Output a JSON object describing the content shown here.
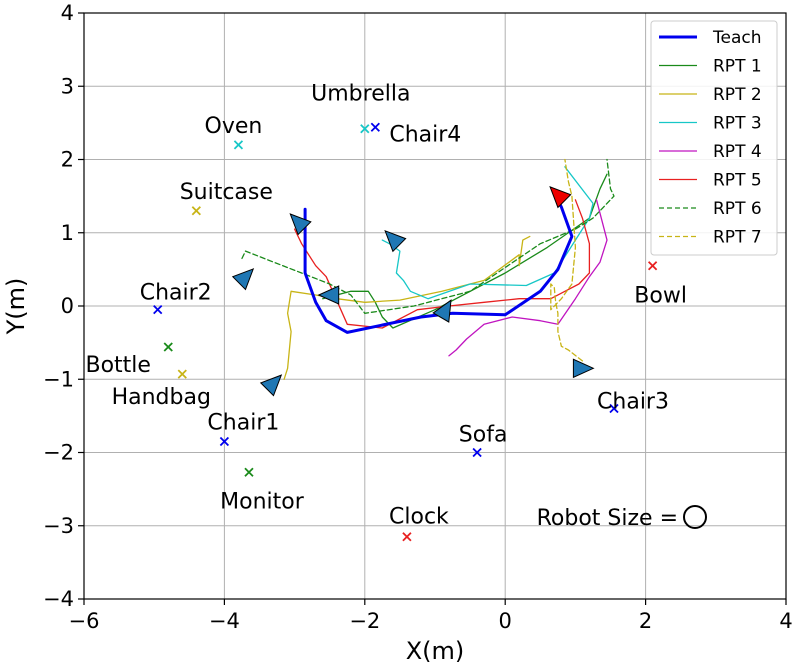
{
  "chart_data": {
    "type": "line",
    "title": "",
    "xlabel": "X(m)",
    "ylabel": "Y(m)",
    "xlim": [
      -6,
      4
    ],
    "ylim": [
      -4,
      4
    ],
    "xticks": [
      -6,
      -4,
      -2,
      0,
      2,
      4
    ],
    "yticks": [
      -4,
      -3,
      -2,
      -1,
      0,
      1,
      2,
      3,
      4
    ],
    "xtick_labels": [
      "−6",
      "−4",
      "−2",
      "0",
      "2",
      "4"
    ],
    "ytick_labels": [
      "−4",
      "−3",
      "−2",
      "−1",
      "0",
      "1",
      "2",
      "3",
      "4"
    ],
    "grid": true,
    "legend_position": "top-right",
    "series": [
      {
        "name": "Teach",
        "color": "#0000ee",
        "dash": "solid",
        "width": 3,
        "x": [
          -2.85,
          -2.85,
          -2.7,
          -2.55,
          -2.25,
          -1.8,
          -1.2,
          -0.75,
          0.0,
          0.5,
          0.75,
          0.95,
          0.8,
          0.7
        ],
        "y": [
          1.32,
          0.45,
          0.05,
          -0.2,
          -0.36,
          -0.27,
          -0.15,
          -0.1,
          -0.12,
          0.2,
          0.5,
          0.95,
          1.35,
          1.55
        ]
      },
      {
        "name": "RPT 1",
        "color": "#1a8a1a",
        "dash": "solid",
        "width": 1.3,
        "x": [
          -2.6,
          -2.2,
          -1.95,
          -1.85,
          -1.75,
          -1.6,
          -1.0,
          0.0,
          0.6,
          1.2,
          1.35,
          1.45
        ],
        "y": [
          0.1,
          0.2,
          0.2,
          0.05,
          -0.15,
          -0.3,
          -0.05,
          0.45,
          0.8,
          1.2,
          1.6,
          1.8
        ]
      },
      {
        "name": "RPT 2",
        "color": "#c8b416",
        "dash": "solid",
        "width": 1.3,
        "x": [
          -3.15,
          -3.1,
          -3.05,
          -3.1,
          -3.05,
          -2.7,
          -2.4,
          -2.0,
          -1.5,
          -0.9,
          -0.3,
          0.2,
          0.2,
          0.25,
          0.35
        ],
        "y": [
          -1.0,
          -0.85,
          -0.35,
          -0.1,
          0.2,
          0.15,
          0.1,
          0.05,
          0.08,
          0.2,
          0.35,
          0.7,
          0.55,
          0.9,
          0.95
        ]
      },
      {
        "name": "RPT 3",
        "color": "#17c7c7",
        "dash": "solid",
        "width": 1.3,
        "x": [
          -1.75,
          -1.65,
          -1.5,
          -1.55,
          -1.45,
          -1.35,
          -1.1,
          -0.5,
          0.3,
          0.7,
          0.9,
          1.1,
          1.2,
          1.25,
          0.85
        ],
        "y": [
          0.9,
          0.85,
          0.75,
          0.45,
          0.35,
          0.2,
          0.1,
          0.3,
          0.28,
          0.45,
          0.75,
          1.05,
          1.2,
          1.4,
          1.9
        ]
      },
      {
        "name": "RPT 4",
        "color": "#c015c0",
        "dash": "solid",
        "width": 1.3,
        "x": [
          -0.8,
          -0.7,
          -0.55,
          -0.3,
          0.1,
          0.5,
          0.75,
          1.0,
          1.2,
          1.35,
          1.45,
          1.3
        ],
        "y": [
          -0.68,
          -0.6,
          -0.45,
          -0.25,
          -0.15,
          -0.2,
          -0.25,
          0.1,
          0.4,
          0.6,
          0.9,
          1.45
        ]
      },
      {
        "name": "RPT 5",
        "color": "#e82020",
        "dash": "solid",
        "width": 1.3,
        "x": [
          -3.0,
          -2.9,
          -2.7,
          -2.55,
          -2.25,
          -1.75,
          -1.25,
          -0.8,
          -0.3,
          0.2,
          0.65,
          0.85,
          1.05,
          1.2,
          1.2,
          1.1,
          1.0
        ],
        "y": [
          1.05,
          0.85,
          0.55,
          0.4,
          -0.25,
          -0.3,
          -0.05,
          0.0,
          0.05,
          0.1,
          0.1,
          0.2,
          0.3,
          0.45,
          0.85,
          1.2,
          1.45
        ]
      },
      {
        "name": "RPT 6",
        "color": "#1a8a1a",
        "dash": "dash",
        "width": 1.3,
        "x": [
          -3.75,
          -3.7,
          -3.3,
          -2.9,
          -2.5,
          -2.2,
          -2.0,
          -1.3,
          -0.5,
          0.5,
          1.0,
          1.25,
          1.55,
          1.5,
          1.45
        ],
        "y": [
          0.65,
          0.75,
          0.6,
          0.45,
          0.3,
          0.15,
          -0.1,
          0.0,
          0.2,
          0.85,
          1.05,
          1.2,
          1.5,
          1.6,
          2.0
        ]
      },
      {
        "name": "RPT 7",
        "color": "#c8b416",
        "dash": "dash",
        "width": 1.3,
        "x": [
          1.1,
          0.9,
          0.8,
          0.75,
          0.75,
          0.72,
          0.7,
          0.65,
          0.65,
          0.8,
          0.95,
          1.0,
          0.95,
          0.9,
          0.85
        ],
        "y": [
          -0.75,
          -0.6,
          -0.55,
          -0.35,
          -0.1,
          0.05,
          0.25,
          0.3,
          -0.05,
          0.1,
          0.3,
          0.8,
          1.5,
          1.7,
          2.0
        ]
      }
    ],
    "objects": [
      {
        "label": "Umbrella",
        "x": -2.0,
        "y": 2.42,
        "color": "#17c7c7"
      },
      {
        "label": "Chair4",
        "x": -1.85,
        "y": 2.44,
        "color": "#0000ee"
      },
      {
        "label": "Oven",
        "x": -3.8,
        "y": 2.2,
        "color": "#17c7c7"
      },
      {
        "label": "Suitcase",
        "x": -4.4,
        "y": 1.3,
        "color": "#c8b416"
      },
      {
        "label": "Chair2",
        "x": -4.95,
        "y": -0.05,
        "color": "#0000ee"
      },
      {
        "label": "Bottle",
        "x": -4.8,
        "y": -0.56,
        "color": "#1a8a1a"
      },
      {
        "label": "Handbag",
        "x": -4.6,
        "y": -0.93,
        "color": "#c8b416"
      },
      {
        "label": "Chair1",
        "x": -4.0,
        "y": -1.85,
        "color": "#0000ee"
      },
      {
        "label": "Monitor",
        "x": -3.65,
        "y": -2.27,
        "color": "#1a8a1a"
      },
      {
        "label": "Sofa",
        "x": -0.4,
        "y": -2.0,
        "color": "#0000ee"
      },
      {
        "label": "Clock",
        "x": -1.4,
        "y": -3.15,
        "color": "#e82020"
      },
      {
        "label": "Bowl",
        "x": 2.1,
        "y": 0.55,
        "color": "#e82020"
      },
      {
        "label": "Chair3",
        "x": 1.55,
        "y": -1.4,
        "color": "#0000ee"
      }
    ],
    "robots": [
      {
        "x": -2.95,
        "y": 1.15,
        "dir": 135,
        "color": "#1f77b4"
      },
      {
        "x": -3.7,
        "y": 0.4,
        "dir": 45,
        "color": "#1f77b4"
      },
      {
        "x": -1.6,
        "y": 0.92,
        "dir": 135,
        "color": "#1f77b4"
      },
      {
        "x": -2.5,
        "y": 0.15,
        "dir": 180,
        "color": "#1f77b4"
      },
      {
        "x": -0.85,
        "y": -0.05,
        "dir": 60,
        "color": "#1f77b4"
      },
      {
        "x": -3.3,
        "y": -1.05,
        "dir": 45,
        "color": "#1f77b4"
      },
      {
        "x": 1.1,
        "y": -0.85,
        "dir": 0,
        "color": "#1f77b4"
      },
      {
        "x": 0.75,
        "y": 1.52,
        "dir": 135,
        "color": "#ee0000"
      }
    ],
    "robot_size_label": "Robot Size ="
  }
}
